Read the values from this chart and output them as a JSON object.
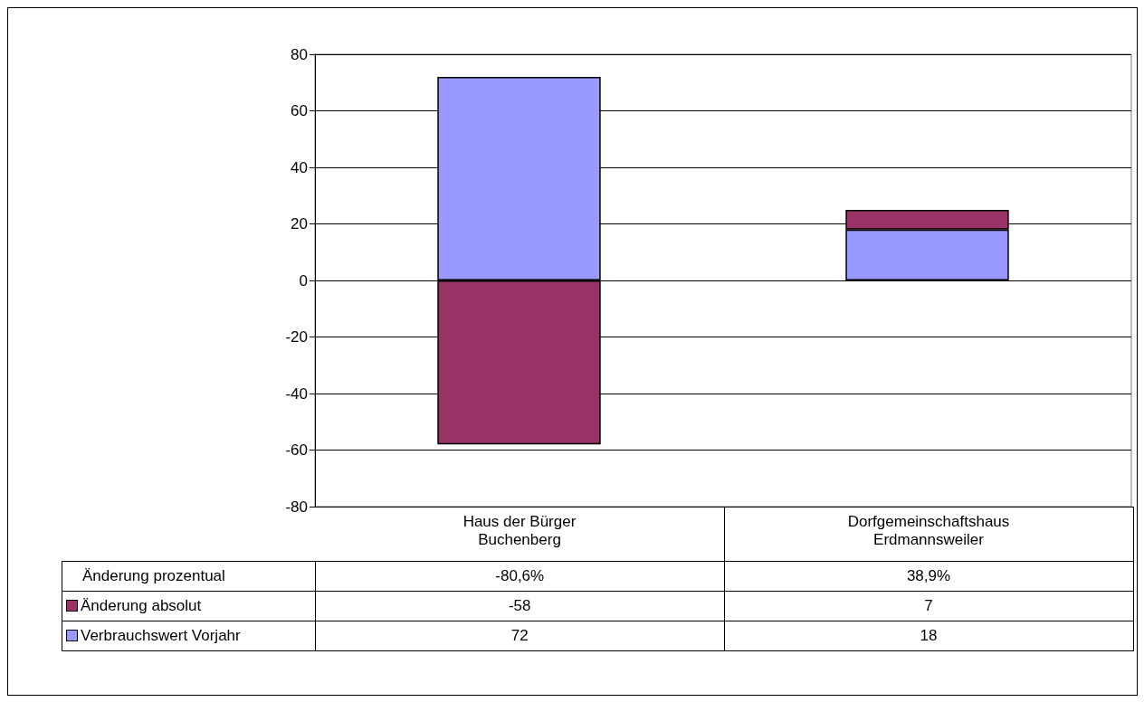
{
  "chart_data": {
    "type": "bar",
    "stacked": true,
    "categories": [
      "Haus der Bürger Buchenberg",
      "Dorfgemeinschaftshaus Erdmannsweiler"
    ],
    "series": [
      {
        "name": "Verbrauchswert Vorjahr",
        "color": "#9999ff",
        "values": [
          72,
          18
        ]
      },
      {
        "name": "Änderung absolut",
        "color": "#993366",
        "values": [
          -58,
          7
        ]
      }
    ],
    "annotations": [
      "Änderung prozentual",
      "-80,6%",
      "38,9%"
    ],
    "ylim": [
      -80,
      80
    ],
    "yticks": [
      -80,
      -60,
      -40,
      -20,
      0,
      20,
      40,
      60,
      80
    ],
    "grid": "y",
    "legend": "bottom left",
    "data_labels": true
  }
}
